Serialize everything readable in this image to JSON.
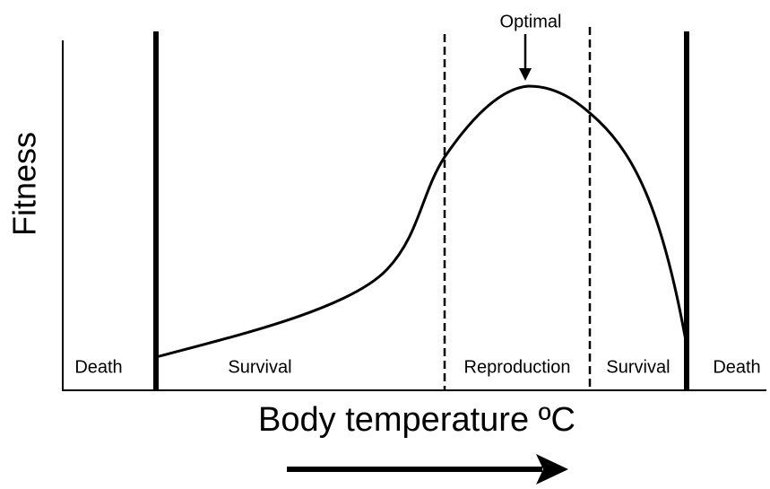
{
  "title": "Optimal",
  "y_axis_label": "Fitness",
  "x_axis_label": "Body temperature ºC",
  "zones": [
    "Death",
    "Survival",
    "Reproduction",
    "Survival",
    "Death"
  ]
}
